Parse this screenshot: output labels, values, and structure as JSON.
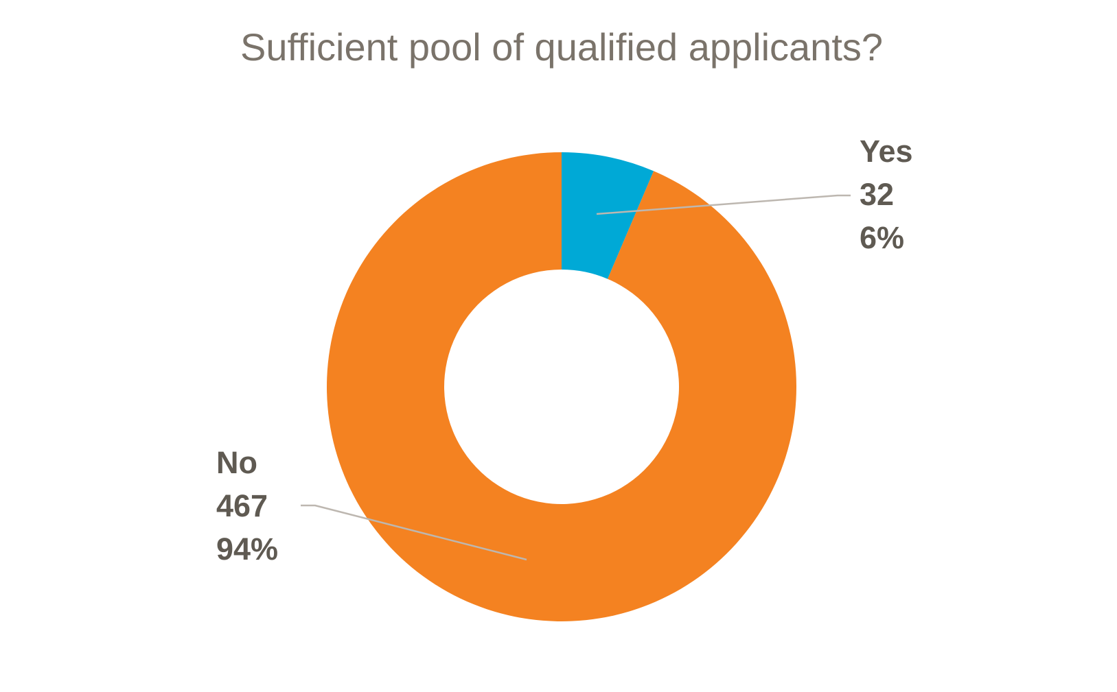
{
  "chart_data": {
    "type": "donut",
    "title": "Sufficient pool of qualified applicants?",
    "categories": [
      "Yes",
      "No"
    ],
    "values": [
      32,
      467
    ],
    "percent_labels": [
      "6%",
      "94%"
    ],
    "colors": [
      "#00a9d6",
      "#f48221"
    ]
  }
}
